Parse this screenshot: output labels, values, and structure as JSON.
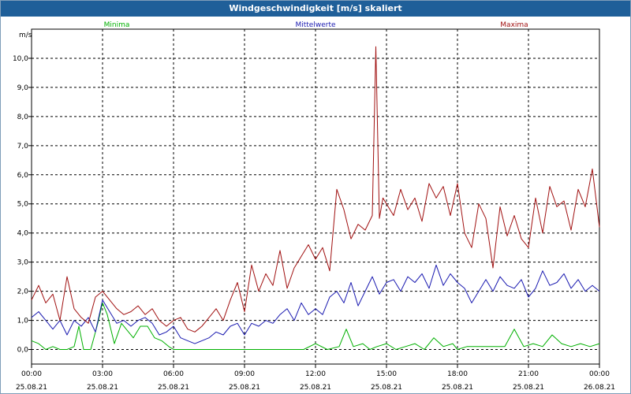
{
  "window": {
    "title": "Windgeschwindigkeit [m/s] skaliert"
  },
  "chart_data": {
    "type": "line",
    "title": "Windgeschwindigkeit [m/s] skaliert",
    "ylabel": "m/s",
    "ylim": [
      -0.5,
      11.0
    ],
    "xlim": [
      0,
      24
    ],
    "grid": true,
    "yticks": [
      0.0,
      1.0,
      2.0,
      3.0,
      4.0,
      5.0,
      6.0,
      7.0,
      8.0,
      9.0,
      10.0
    ],
    "ytick_labels": [
      "0,0",
      "1,0",
      "2,0",
      "3,0",
      "4,0",
      "5,0",
      "6,0",
      "7,0",
      "8,0",
      "9,0",
      "10,0"
    ],
    "xticks": [
      0,
      3,
      6,
      9,
      12,
      15,
      18,
      21,
      24
    ],
    "xtick_times": [
      "00:00",
      "03:00",
      "06:00",
      "09:00",
      "12:00",
      "15:00",
      "18:00",
      "21:00",
      "00:00"
    ],
    "xtick_dates": [
      "25.08.21",
      "25.08.21",
      "25.08.21",
      "25.08.21",
      "25.08.21",
      "25.08.21",
      "25.08.21",
      "25.08.21",
      "26.08.21"
    ],
    "series": [
      {
        "name": "Minima",
        "color": "#00b000",
        "x": [
          0,
          0.3,
          0.6,
          0.9,
          1.2,
          1.5,
          1.8,
          2.0,
          2.2,
          2.5,
          2.8,
          3.0,
          3.2,
          3.5,
          3.8,
          4.0,
          4.3,
          4.6,
          4.9,
          5.2,
          5.5,
          5.8,
          6.0,
          6.3,
          6.6,
          7.0,
          8.0,
          9.0,
          10.0,
          11.0,
          11.5,
          12.0,
          12.5,
          13.0,
          13.3,
          13.6,
          14.0,
          14.3,
          14.6,
          15.0,
          15.4,
          15.8,
          16.2,
          16.6,
          17.0,
          17.4,
          17.8,
          18.0,
          18.4,
          18.8,
          19.2,
          19.6,
          20.0,
          20.4,
          20.8,
          21.2,
          21.6,
          22.0,
          22.4,
          22.8,
          23.2,
          23.6,
          24.0
        ],
        "y": [
          0.3,
          0.2,
          0.0,
          0.1,
          0.0,
          0.0,
          0.1,
          0.8,
          0.0,
          0.0,
          0.9,
          1.6,
          1.2,
          0.2,
          0.9,
          0.7,
          0.4,
          0.8,
          0.8,
          0.4,
          0.3,
          0.1,
          0.0,
          0.0,
          0.0,
          0.0,
          0.0,
          0.0,
          0.0,
          0.0,
          0.0,
          0.2,
          0.0,
          0.1,
          0.7,
          0.1,
          0.2,
          0.0,
          0.1,
          0.2,
          0.0,
          0.1,
          0.2,
          0.0,
          0.4,
          0.1,
          0.2,
          0.0,
          0.1,
          0.1,
          0.1,
          0.1,
          0.1,
          0.7,
          0.1,
          0.2,
          0.1,
          0.5,
          0.2,
          0.1,
          0.2,
          0.1,
          0.2
        ]
      },
      {
        "name": "Mittelwerte",
        "color": "#1a1ab0",
        "x": [
          0,
          0.3,
          0.6,
          0.9,
          1.2,
          1.5,
          1.8,
          2.1,
          2.4,
          2.7,
          3.0,
          3.3,
          3.6,
          3.9,
          4.2,
          4.5,
          4.8,
          5.1,
          5.4,
          5.7,
          6.0,
          6.3,
          6.6,
          6.9,
          7.2,
          7.5,
          7.8,
          8.1,
          8.4,
          8.7,
          9.0,
          9.3,
          9.6,
          9.9,
          10.2,
          10.5,
          10.8,
          11.1,
          11.4,
          11.7,
          12.0,
          12.3,
          12.6,
          12.9,
          13.2,
          13.5,
          13.8,
          14.1,
          14.4,
          14.7,
          15.0,
          15.3,
          15.6,
          15.9,
          16.2,
          16.5,
          16.8,
          17.1,
          17.4,
          17.7,
          18.0,
          18.3,
          18.6,
          18.9,
          19.2,
          19.5,
          19.8,
          20.1,
          20.4,
          20.7,
          21.0,
          21.3,
          21.6,
          21.9,
          22.2,
          22.5,
          22.8,
          23.1,
          23.4,
          23.7,
          24.0
        ],
        "y": [
          1.1,
          1.3,
          1.0,
          0.7,
          1.0,
          0.5,
          1.0,
          0.8,
          1.1,
          0.6,
          1.7,
          1.3,
          0.9,
          1.0,
          0.8,
          1.0,
          1.1,
          0.9,
          0.5,
          0.6,
          0.8,
          0.4,
          0.3,
          0.2,
          0.3,
          0.4,
          0.6,
          0.5,
          0.8,
          0.9,
          0.5,
          0.9,
          0.8,
          1.0,
          0.9,
          1.2,
          1.4,
          1.0,
          1.6,
          1.2,
          1.4,
          1.2,
          1.8,
          2.0,
          1.6,
          2.3,
          1.5,
          2.0,
          2.5,
          1.9,
          2.3,
          2.4,
          2.0,
          2.5,
          2.3,
          2.6,
          2.1,
          2.9,
          2.2,
          2.6,
          2.3,
          2.1,
          1.6,
          2.0,
          2.4,
          2.0,
          2.5,
          2.2,
          2.1,
          2.4,
          1.8,
          2.1,
          2.7,
          2.2,
          2.3,
          2.6,
          2.1,
          2.4,
          2.0,
          2.2,
          2.0
        ]
      },
      {
        "name": "Maxima",
        "color": "#a01010",
        "x": [
          0,
          0.3,
          0.6,
          0.9,
          1.2,
          1.5,
          1.8,
          2.1,
          2.4,
          2.7,
          3.0,
          3.3,
          3.6,
          3.9,
          4.2,
          4.5,
          4.8,
          5.1,
          5.4,
          5.7,
          6.0,
          6.3,
          6.6,
          6.9,
          7.2,
          7.5,
          7.8,
          8.1,
          8.4,
          8.7,
          9.0,
          9.3,
          9.6,
          9.9,
          10.2,
          10.5,
          10.8,
          11.1,
          11.4,
          11.7,
          12.0,
          12.3,
          12.6,
          12.9,
          13.2,
          13.5,
          13.8,
          14.1,
          14.4,
          14.55,
          14.7,
          14.85,
          15.0,
          15.3,
          15.6,
          15.9,
          16.2,
          16.5,
          16.8,
          17.1,
          17.4,
          17.7,
          18.0,
          18.3,
          18.6,
          18.9,
          19.2,
          19.5,
          19.8,
          20.1,
          20.4,
          20.7,
          21.0,
          21.3,
          21.6,
          21.9,
          22.2,
          22.5,
          22.8,
          23.1,
          23.4,
          23.7,
          24.0
        ],
        "y": [
          1.7,
          2.2,
          1.6,
          1.9,
          1.0,
          2.5,
          1.4,
          1.1,
          0.9,
          1.8,
          2.0,
          1.7,
          1.4,
          1.2,
          1.3,
          1.5,
          1.2,
          1.4,
          1.0,
          0.8,
          1.0,
          1.1,
          0.7,
          0.6,
          0.8,
          1.1,
          1.4,
          1.0,
          1.7,
          2.3,
          1.3,
          2.9,
          2.0,
          2.6,
          2.2,
          3.4,
          2.1,
          2.8,
          3.2,
          3.6,
          3.1,
          3.5,
          2.7,
          5.5,
          4.8,
          3.8,
          4.3,
          4.1,
          4.6,
          10.4,
          4.5,
          5.2,
          5.0,
          4.6,
          5.5,
          4.8,
          5.2,
          4.4,
          5.7,
          5.2,
          5.6,
          4.6,
          5.7,
          4.0,
          3.5,
          5.0,
          4.5,
          2.8,
          4.9,
          3.9,
          4.6,
          3.8,
          3.5,
          5.2,
          4.0,
          5.6,
          4.9,
          5.1,
          4.1,
          5.5,
          4.9,
          6.2,
          4.2
        ]
      }
    ]
  }
}
